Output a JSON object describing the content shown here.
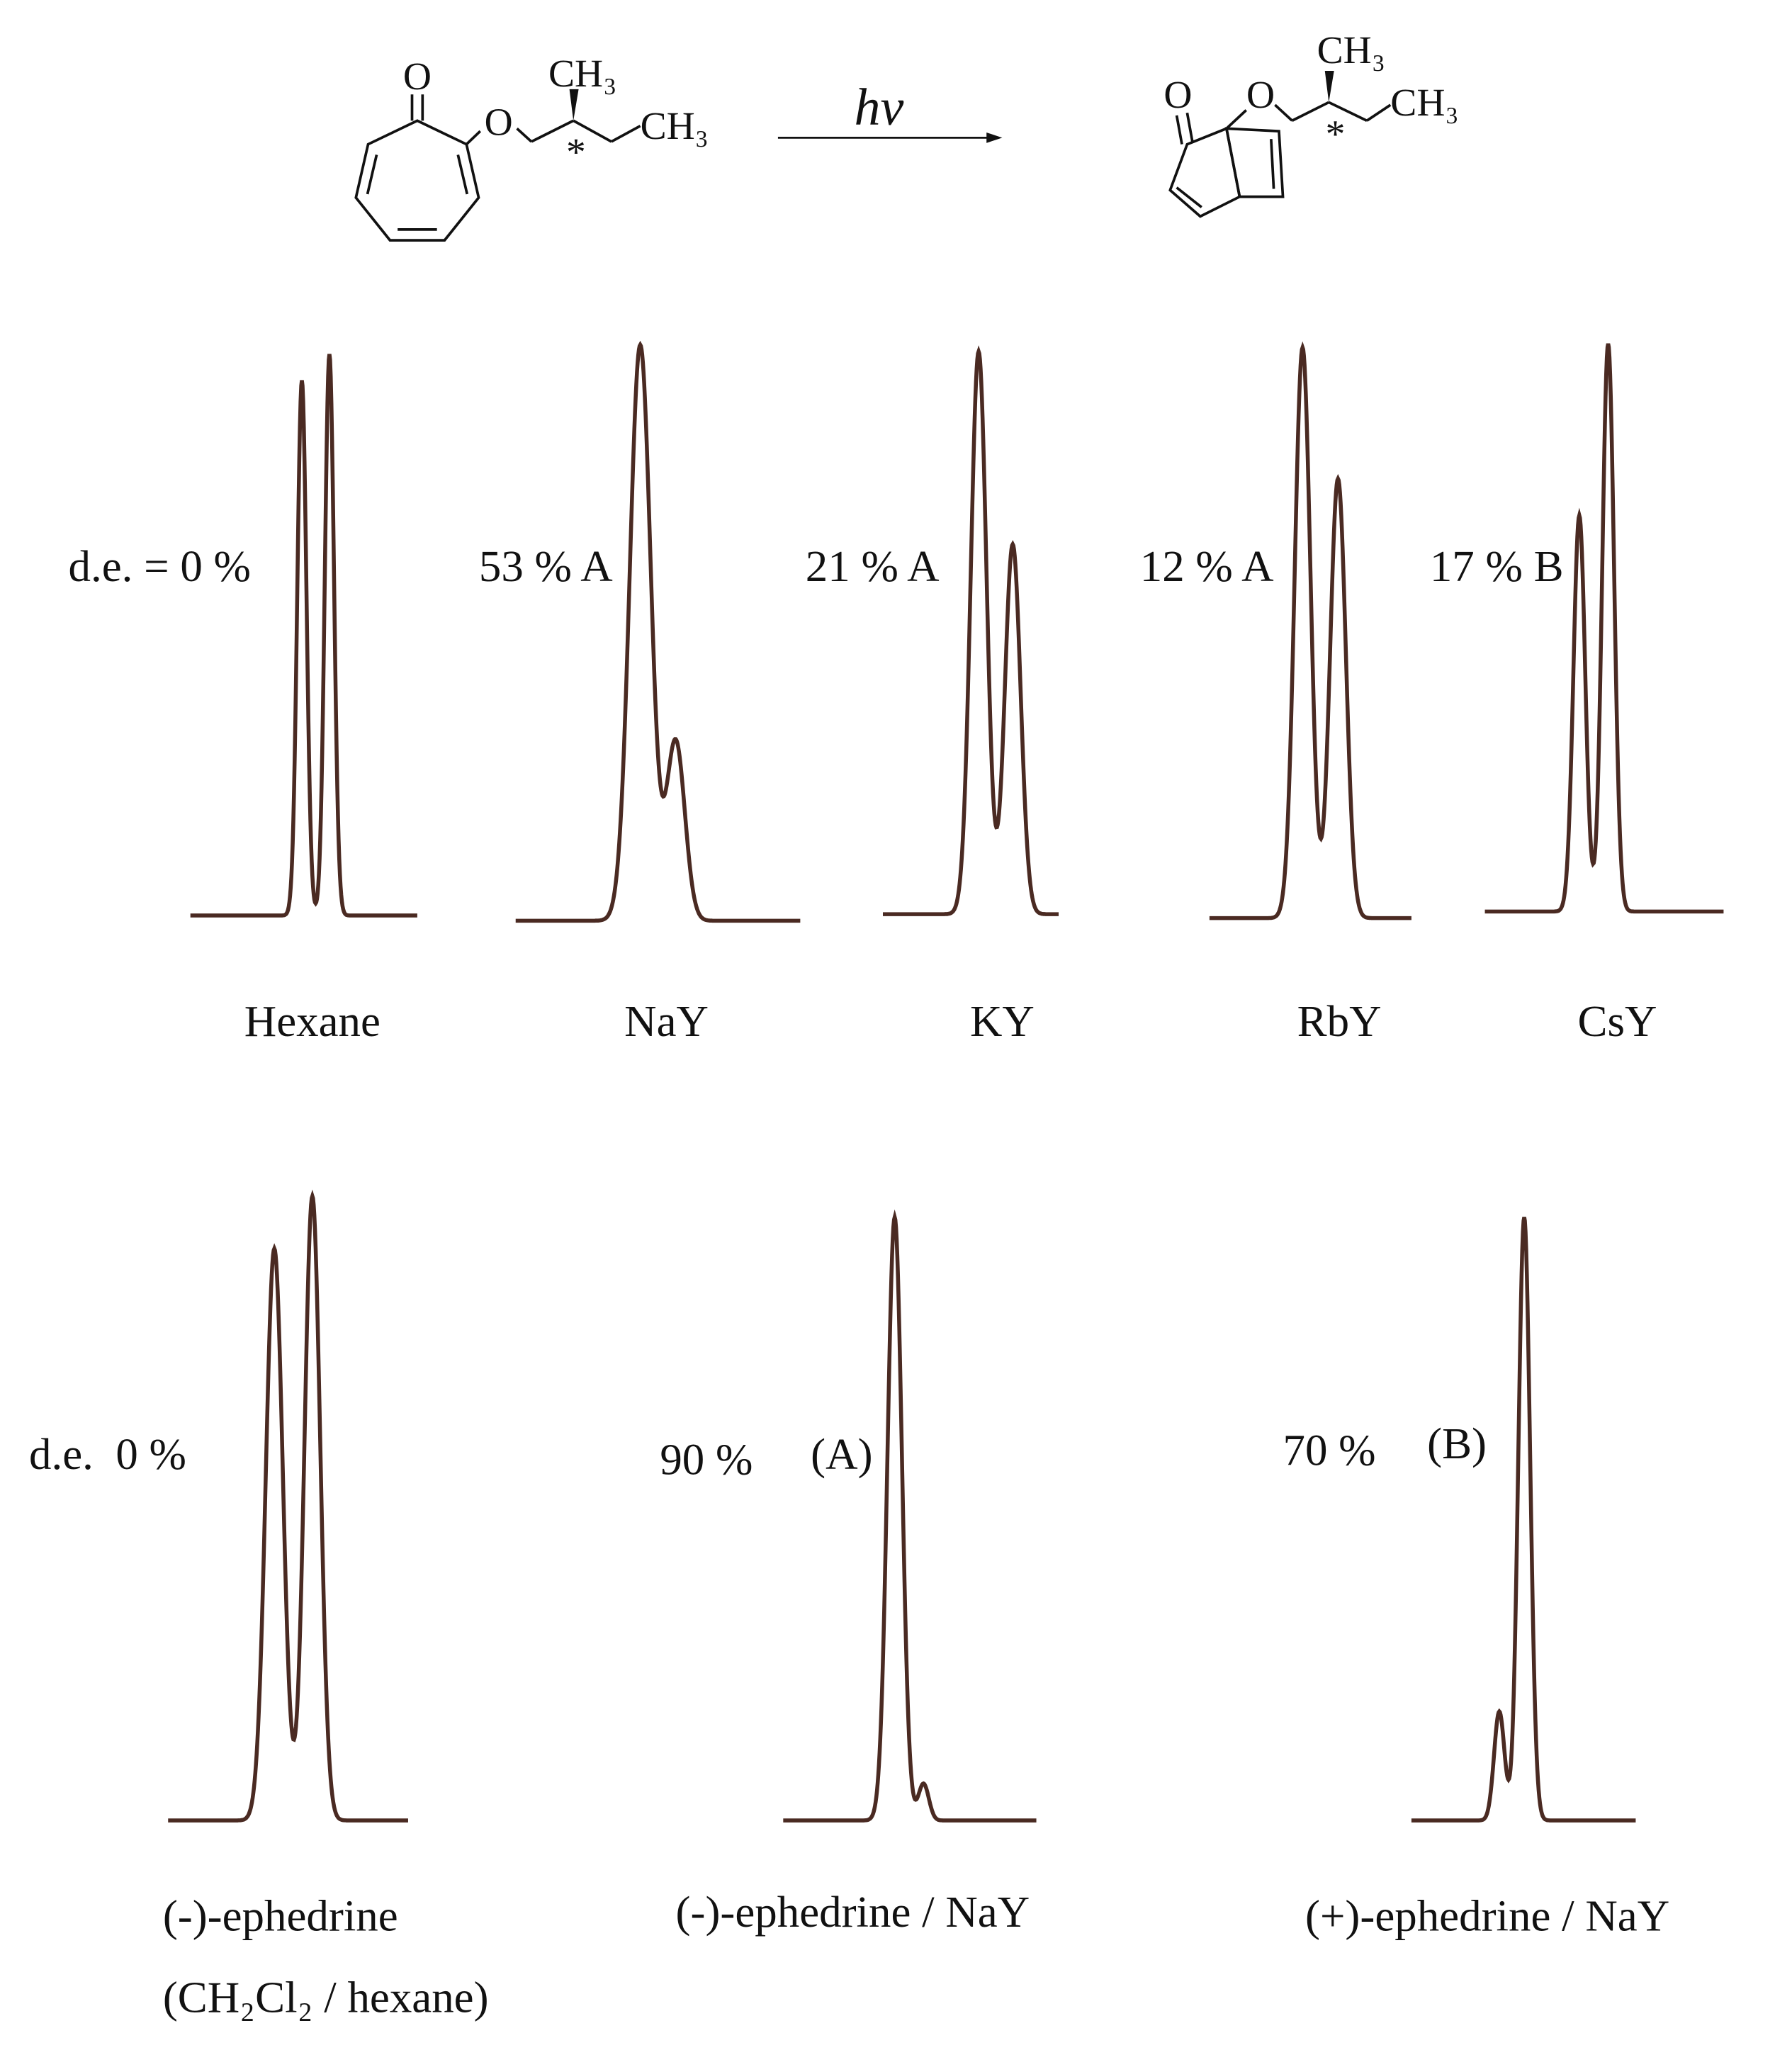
{
  "scheme": {
    "reactant": {
      "carbonyl_o": "O",
      "ether_o": "O",
      "methyl": "CH₃",
      "ethyl_methyl": "CH₃",
      "stereocenter": "*"
    },
    "arrow_label": "hν",
    "product": {
      "carbonyl_o": "O",
      "ether_o": "O",
      "methyl": "CH₃",
      "ethyl_methyl": "CH₃",
      "stereocenter": "*"
    }
  },
  "panels_top": [
    {
      "de": "d.e. = 0 %",
      "name": "Hexane"
    },
    {
      "de": "53 % A",
      "name": "NaY"
    },
    {
      "de": "21 % A",
      "name": "KY"
    },
    {
      "de": "12 % A",
      "name": "RbY"
    },
    {
      "de": "17 % B",
      "name": "CsY"
    }
  ],
  "panels_bottom": [
    {
      "de": "d.e.  0 %",
      "name": "(-)-ephedrine",
      "name_2": "(CH₂Cl₂ / hexane)"
    },
    {
      "de": "90 %",
      "selectivity": "(A)",
      "name": "(-)-ephedrine / NaY"
    },
    {
      "de": "70 %",
      "selectivity": "(B)",
      "name": "(+)-ephedrine / NaY"
    }
  ]
}
